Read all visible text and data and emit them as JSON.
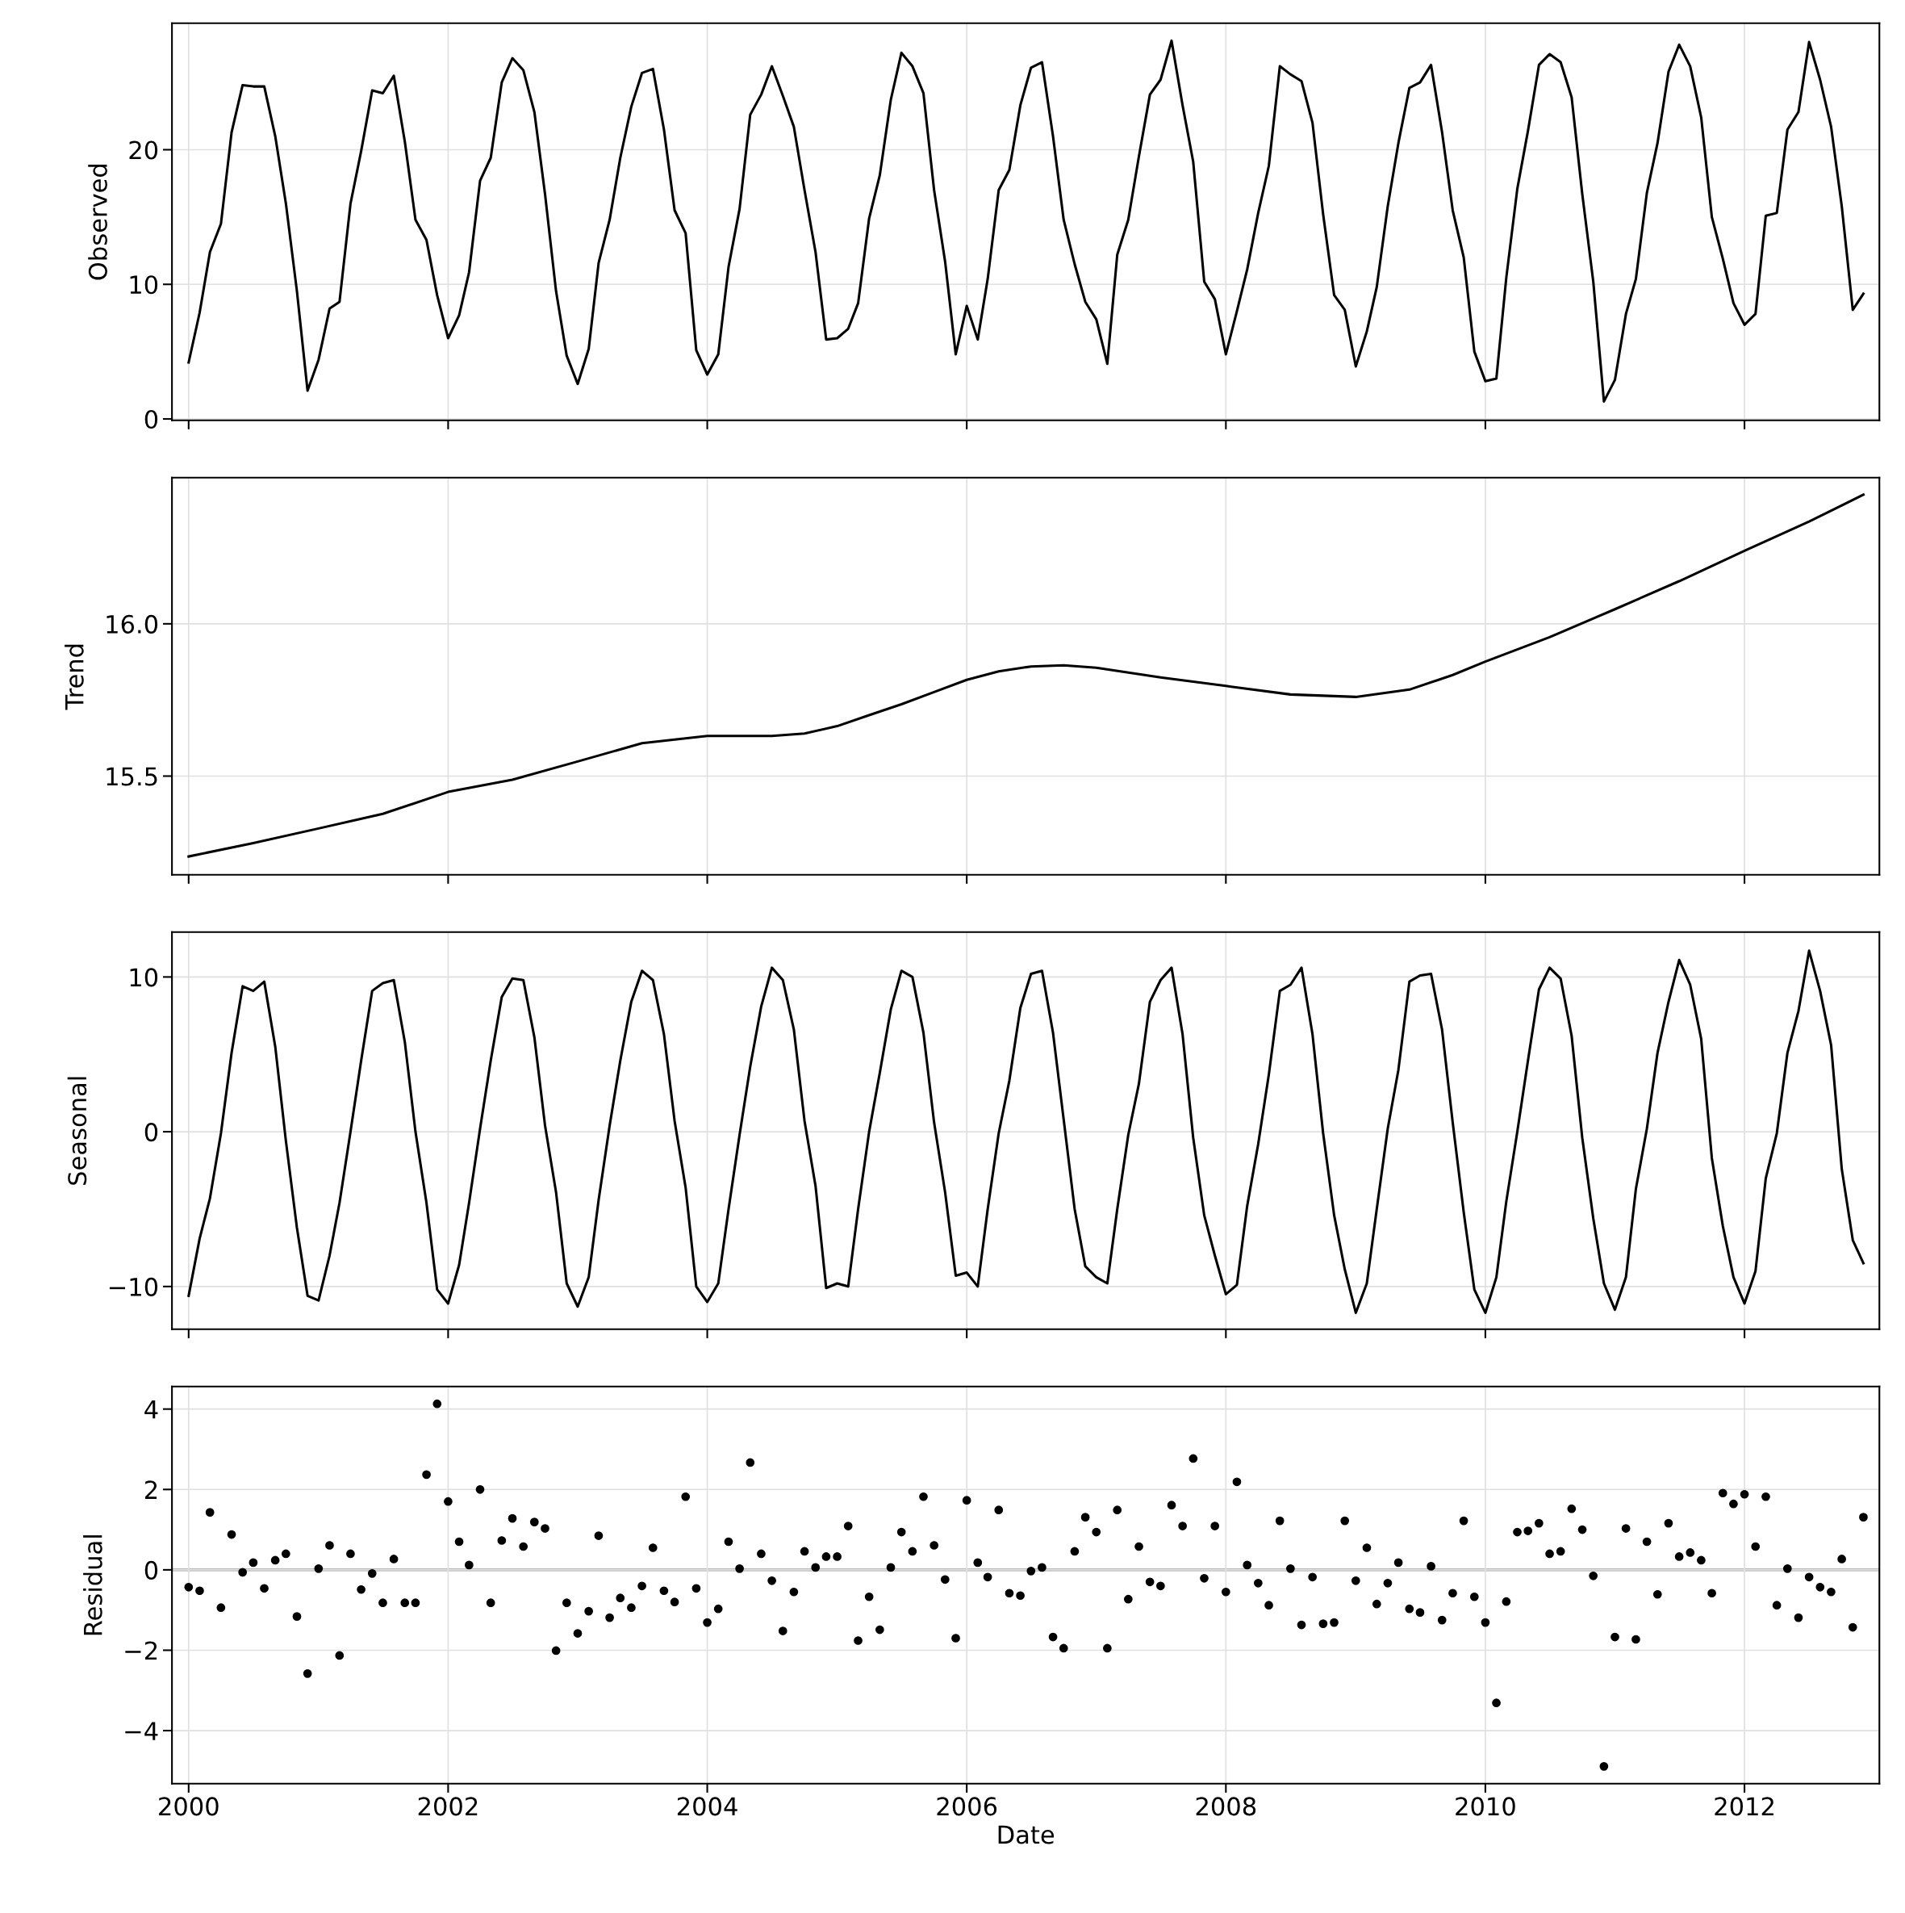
{
  "chart_data": [
    {
      "type": "line",
      "ylabel": "Observed",
      "xlim": [
        "1999-11-15",
        "2013-01-15"
      ],
      "xticks": [
        "2000",
        "2002",
        "2004",
        "2006",
        "2008",
        "2010",
        "2012"
      ],
      "ylim": [
        -0.1,
        29.4
      ],
      "yticks": [
        0,
        10,
        20
      ],
      "grid": true,
      "tick_labels": "y",
      "marker": "none",
      "line_style": "solid",
      "x": [
        "2000-01",
        "2000-02",
        "2000-03",
        "2000-04",
        "2000-05",
        "2000-06",
        "2000-07",
        "2000-08",
        "2000-09",
        "2000-10",
        "2000-11",
        "2000-12",
        "2001-01",
        "2001-02",
        "2001-03",
        "2001-04",
        "2001-05",
        "2001-06",
        "2001-07",
        "2001-08",
        "2001-09",
        "2001-10",
        "2001-11",
        "2001-12",
        "2002-01",
        "2002-02",
        "2002-03",
        "2002-04",
        "2002-05",
        "2002-06",
        "2002-07",
        "2002-08",
        "2002-09",
        "2002-10",
        "2002-11",
        "2002-12",
        "2003-01",
        "2003-02",
        "2003-03",
        "2003-04",
        "2003-05",
        "2003-06",
        "2003-07",
        "2003-08",
        "2003-09",
        "2003-10",
        "2003-11",
        "2003-12",
        "2004-01",
        "2004-02",
        "2004-03",
        "2004-04",
        "2004-05",
        "2004-06",
        "2004-07",
        "2004-08",
        "2004-09",
        "2004-10",
        "2004-11",
        "2004-12",
        "2005-01",
        "2005-02",
        "2005-03",
        "2005-04",
        "2005-05",
        "2005-06",
        "2005-07",
        "2005-08",
        "2005-09",
        "2005-10",
        "2005-11",
        "2005-12",
        "2006-01",
        "2006-02",
        "2006-03",
        "2006-04",
        "2006-05",
        "2006-06",
        "2006-07",
        "2006-08",
        "2006-09",
        "2006-10",
        "2006-11",
        "2006-12",
        "2007-01",
        "2007-02",
        "2007-03",
        "2007-04",
        "2007-05",
        "2007-06",
        "2007-07",
        "2007-08",
        "2007-09",
        "2007-10",
        "2007-11",
        "2007-12",
        "2008-01",
        "2008-02",
        "2008-03",
        "2008-04",
        "2008-05",
        "2008-06",
        "2008-07",
        "2008-08",
        "2008-09",
        "2008-10",
        "2008-11",
        "2008-12",
        "2009-01",
        "2009-02",
        "2009-03",
        "2009-04",
        "2009-05",
        "2009-06",
        "2009-07",
        "2009-08",
        "2009-09",
        "2009-10",
        "2009-11",
        "2009-12",
        "2010-01",
        "2010-02",
        "2010-03",
        "2010-04",
        "2010-05",
        "2010-06",
        "2010-07",
        "2010-08",
        "2010-09",
        "2010-10",
        "2010-11",
        "2010-12",
        "2011-01",
        "2011-02",
        "2011-03",
        "2011-04",
        "2011-05",
        "2011-06",
        "2011-07",
        "2011-08",
        "2011-09",
        "2011-10",
        "2011-11",
        "2011-12",
        "2012-01",
        "2012-02",
        "2012-03",
        "2012-04",
        "2012-05",
        "2012-06",
        "2012-07",
        "2012-08",
        "2012-09",
        "2012-10",
        "2012-11",
        "2012-12"
      ],
      "series": [
        {
          "color": "#000000",
          "values": [
            4.2,
            7.9,
            12.4,
            14.5,
            21.3,
            24.8,
            24.7,
            24.7,
            21,
            16,
            9.5,
            2.1,
            4.4,
            8.2,
            8.7,
            16,
            19.9,
            24.4,
            24.2,
            25.5,
            20.6,
            14.8,
            13.3,
            9.2,
            6.0,
            7.7,
            10.9,
            17.7,
            19.4,
            25,
            26.8,
            25.9,
            22.8,
            16.7,
            9.5,
            4.7,
            2.6,
            5.2,
            11.6,
            14.8,
            19.4,
            23.2,
            25.7,
            26,
            21.5,
            15.5,
            13.8,
            5.1,
            3.3,
            4.8,
            11.3,
            15.6,
            22.6,
            24.1,
            26.2,
            24,
            21.7,
            17,
            12.4,
            5.9,
            6.0,
            6.7,
            8.6,
            14.9,
            18.1,
            23.7,
            27.2,
            26.2,
            24.2,
            17,
            11.7,
            4.8,
            8.4,
            5.9,
            10.4,
            17,
            18.5,
            23.3,
            26.1,
            26.5,
            21,
            14.8,
            11.5,
            8.7,
            7.4,
            4.1,
            12.2,
            14.8,
            19.5,
            24.1,
            25.2,
            28.1,
            23.3,
            19.1,
            10.2,
            8.9,
            4.8,
            8.0,
            11.1,
            15.3,
            18.8,
            26.2,
            25.6,
            25.1,
            22,
            15.2,
            9.2,
            8.1,
            3.9,
            6.5,
            9.8,
            15.8,
            20.5,
            24.6,
            25,
            26.3,
            21.3,
            15.5,
            12,
            5.0,
            2.8,
            3.0,
            10.5,
            17.1,
            21.4,
            26.3,
            27.1,
            26.5,
            23.9,
            16.7,
            10.2,
            1.3,
            2.9,
            7.8,
            10.4,
            16.8,
            20.5,
            25.8,
            27.8,
            26.2,
            22.4,
            15.0,
            11.9,
            8.6,
            7.0,
            7.8,
            15.1,
            15.3,
            21.5,
            22.8,
            28.0,
            25.2,
            21.7,
            15.8,
            8.1,
            9.3
          ]
        }
      ]
    },
    {
      "type": "line",
      "ylabel": "Trend",
      "xlim": [
        "1999-11-15",
        "2013-01-15"
      ],
      "xticks": [
        "2000",
        "2002",
        "2004",
        "2006",
        "2008",
        "2010",
        "2012"
      ],
      "ylim": [
        15.176,
        16.48
      ],
      "yticks": [
        15.5,
        {
          "value": 16,
          "label": "16.0"
        }
      ],
      "grid": true,
      "tick_labels": "y",
      "marker": "none",
      "line_style": "solid",
      "x": [
        "2000-01",
        "2000-07",
        "2001-01",
        "2001-07",
        "2002-01",
        "2002-07",
        "2003-01",
        "2003-07",
        "2004-01",
        "2004-07",
        "2004-10",
        "2005-01",
        "2005-04",
        "2005-07",
        "2005-10",
        "2006-01",
        "2006-04",
        "2006-07",
        "2006-10",
        "2007-01",
        "2007-07",
        "2008-01",
        "2008-07",
        "2009-01",
        "2009-06",
        "2009-10",
        "2010-01",
        "2010-07",
        "2011-01",
        "2011-07",
        "2012-01",
        "2012-07",
        "2012-12"
      ],
      "series": [
        {
          "color": "#000000",
          "values": [
            15.236,
            15.28,
            15.328,
            15.376,
            15.448,
            15.488,
            15.548,
            15.608,
            15.632,
            15.632,
            15.64,
            15.664,
            15.7,
            15.736,
            15.776,
            15.816,
            15.844,
            15.86,
            15.864,
            15.856,
            15.824,
            15.796,
            15.768,
            15.76,
            15.784,
            15.832,
            15.876,
            15.956,
            16.048,
            16.14,
            16.24,
            16.336,
            16.424
          ]
        }
      ]
    },
    {
      "type": "line",
      "ylabel": "Seasonal",
      "xlim": [
        "1999-11-15",
        "2013-01-15"
      ],
      "xticks": [
        "2000",
        "2002",
        "2004",
        "2006",
        "2008",
        "2010",
        "2012"
      ],
      "ylim": [
        -12.76,
        12.9
      ],
      "yticks": [
        {
          "value": -10,
          "label": "−10"
        },
        0,
        10
      ],
      "grid": true,
      "tick_labels": "y",
      "marker": "none",
      "line_style": "solid",
      "x": [
        "2000-01",
        "2000-02",
        "2000-03",
        "2000-04",
        "2000-05",
        "2000-06",
        "2000-07",
        "2000-08",
        "2000-09",
        "2000-10",
        "2000-11",
        "2000-12",
        "2001-01",
        "2001-02",
        "2001-03",
        "2001-04",
        "2001-05",
        "2001-06",
        "2001-07",
        "2001-08",
        "2001-09",
        "2001-10",
        "2001-11",
        "2001-12",
        "2002-01",
        "2002-02",
        "2002-03",
        "2002-04",
        "2002-05",
        "2002-06",
        "2002-07",
        "2002-08",
        "2002-09",
        "2002-10",
        "2002-11",
        "2002-12",
        "2003-01",
        "2003-02",
        "2003-03",
        "2003-04",
        "2003-05",
        "2003-06",
        "2003-07",
        "2003-08",
        "2003-09",
        "2003-10",
        "2003-11",
        "2003-12",
        "2004-01",
        "2004-02",
        "2004-03",
        "2004-04",
        "2004-05",
        "2004-06",
        "2004-07",
        "2004-08",
        "2004-09",
        "2004-10",
        "2004-11",
        "2004-12",
        "2005-01",
        "2005-02",
        "2005-03",
        "2005-04",
        "2005-05",
        "2005-06",
        "2005-07",
        "2005-08",
        "2005-09",
        "2005-10",
        "2005-11",
        "2005-12",
        "2006-01",
        "2006-02",
        "2006-03",
        "2006-04",
        "2006-05",
        "2006-06",
        "2006-07",
        "2006-08",
        "2006-09",
        "2006-10",
        "2006-11",
        "2006-12",
        "2007-01",
        "2007-02",
        "2007-03",
        "2007-04",
        "2007-05",
        "2007-06",
        "2007-07",
        "2007-08",
        "2007-09",
        "2007-10",
        "2007-11",
        "2007-12",
        "2008-01",
        "2008-02",
        "2008-03",
        "2008-04",
        "2008-05",
        "2008-06",
        "2008-07",
        "2008-08",
        "2008-09",
        "2008-10",
        "2008-11",
        "2008-12",
        "2009-01",
        "2009-02",
        "2009-03",
        "2009-04",
        "2009-05",
        "2009-06",
        "2009-07",
        "2009-08",
        "2009-09",
        "2009-10",
        "2009-11",
        "2009-12",
        "2010-01",
        "2010-02",
        "2010-03",
        "2010-04",
        "2010-05",
        "2010-06",
        "2010-07",
        "2010-08",
        "2010-09",
        "2010-10",
        "2010-11",
        "2010-12",
        "2011-01",
        "2011-02",
        "2011-03",
        "2011-04",
        "2011-05",
        "2011-06",
        "2011-07",
        "2011-08",
        "2011-09",
        "2011-10",
        "2011-11",
        "2011-12",
        "2012-01",
        "2012-02",
        "2012-03",
        "2012-04",
        "2012-05",
        "2012-06",
        "2012-07",
        "2012-08",
        "2012-09",
        "2012-10",
        "2012-11",
        "2012-12"
      ],
      "series": [
        {
          "color": "#000000",
          "values": [
            -10.6,
            -6.9,
            -4.3,
            -0.1,
            5.1,
            9.4,
            9.1,
            9.7,
            5.5,
            -0.6,
            -6.2,
            -10.6,
            -10.9,
            -8.0,
            -4.6,
            0,
            4.6,
            9.1,
            9.6,
            9.8,
            5.8,
            0,
            -4.6,
            -10.2,
            -11.1,
            -8.6,
            -4.6,
            0.2,
            4.6,
            8.7,
            9.9,
            9.8,
            6.1,
            0.4,
            -3.9,
            -9.8,
            -11.3,
            -9.4,
            -4.4,
            0.4,
            4.6,
            8.4,
            10.4,
            9.8,
            6.3,
            0.7,
            -3.6,
            -10.0,
            -11.0,
            -9.8,
            -5.0,
            -0.2,
            4.2,
            8.1,
            10.6,
            9.8,
            6.6,
            0.7,
            -3.5,
            -10.1,
            -9.8,
            -10.0,
            -5.0,
            0,
            3.8,
            7.9,
            10.4,
            10.0,
            6.4,
            0.6,
            -3.9,
            -9.3,
            -9.1,
            -10.0,
            -5.0,
            -0.1,
            3.3,
            8.0,
            10.2,
            10.4,
            6.4,
            0.8,
            -5.0,
            -8.7,
            -9.4,
            -9.8,
            -5.0,
            -0.2,
            3.1,
            8.4,
            9.8,
            10.6,
            6.3,
            -0.4,
            -5.4,
            -8.0,
            -10.5,
            -9.9,
            -4.8,
            -0.8,
            3.7,
            9.1,
            9.5,
            10.6,
            6.3,
            -0.1,
            -5.4,
            -8.9,
            -11.7,
            -9.8,
            -5.0,
            0.2,
            4.0,
            9.7,
            10.1,
            10.2,
            6.6,
            0.6,
            -5.2,
            -10.2,
            -11.7,
            -9.4,
            -4.5,
            0,
            4.6,
            9.2,
            10.6,
            9.9,
            6.2,
            -0.4,
            -5.6,
            -9.8,
            -11.5,
            -9.4,
            -3.7,
            0.2,
            5.1,
            8.4,
            11.1,
            9.5,
            6.0,
            -1.7,
            -6.1,
            -9.4,
            -11.1,
            -9.0,
            -3.0,
            -0.1,
            5.1,
            7.8,
            11.7,
            9.1,
            5.6,
            -2.4,
            -7.0,
            -8.5
          ]
        }
      ]
    },
    {
      "type": "scatter",
      "ylabel": "Residual",
      "xlabel": "Date",
      "xlim": [
        "1999-11-15",
        "2013-01-15"
      ],
      "xticks": [
        "2000",
        "2002",
        "2004",
        "2006",
        "2008",
        "2010",
        "2012"
      ],
      "ylim": [
        -5.32,
        4.56
      ],
      "yticks": [
        {
          "value": -4,
          "label": "−4"
        },
        {
          "value": -2,
          "label": "−2"
        },
        0,
        2,
        4
      ],
      "grid": true,
      "marker": "circle",
      "ref_lines": [
        {
          "axis": "y",
          "value": 0,
          "color": "#a0a0a0"
        }
      ],
      "x": [
        "2000-01",
        "2000-02",
        "2000-03",
        "2000-04",
        "2000-05",
        "2000-06",
        "2000-07",
        "2000-08",
        "2000-09",
        "2000-10",
        "2000-11",
        "2000-12",
        "2001-01",
        "2001-02",
        "2001-03",
        "2001-04",
        "2001-05",
        "2001-06",
        "2001-07",
        "2001-08",
        "2001-09",
        "2001-10",
        "2001-11",
        "2001-12",
        "2002-01",
        "2002-02",
        "2002-03",
        "2002-04",
        "2002-05",
        "2002-06",
        "2002-07",
        "2002-08",
        "2002-09",
        "2002-10",
        "2002-11",
        "2002-12",
        "2003-01",
        "2003-02",
        "2003-03",
        "2003-04",
        "2003-05",
        "2003-06",
        "2003-07",
        "2003-08",
        "2003-09",
        "2003-10",
        "2003-11",
        "2003-12",
        "2004-01",
        "2004-02",
        "2004-03",
        "2004-04",
        "2004-05",
        "2004-06",
        "2004-07",
        "2004-08",
        "2004-09",
        "2004-10",
        "2004-11",
        "2004-12",
        "2005-01",
        "2005-02",
        "2005-03",
        "2005-04",
        "2005-05",
        "2005-06",
        "2005-07",
        "2005-08",
        "2005-09",
        "2005-10",
        "2005-11",
        "2005-12",
        "2006-01",
        "2006-02",
        "2006-03",
        "2006-04",
        "2006-05",
        "2006-06",
        "2006-07",
        "2006-08",
        "2006-09",
        "2006-10",
        "2006-11",
        "2006-12",
        "2007-01",
        "2007-02",
        "2007-03",
        "2007-04",
        "2007-05",
        "2007-06",
        "2007-07",
        "2007-08",
        "2007-09",
        "2007-10",
        "2007-11",
        "2007-12",
        "2008-01",
        "2008-02",
        "2008-03",
        "2008-04",
        "2008-05",
        "2008-06",
        "2008-07",
        "2008-08",
        "2008-09",
        "2008-10",
        "2008-11",
        "2008-12",
        "2009-01",
        "2009-02",
        "2009-03",
        "2009-04",
        "2009-05",
        "2009-06",
        "2009-07",
        "2009-08",
        "2009-09",
        "2009-10",
        "2009-11",
        "2009-12",
        "2010-01",
        "2010-02",
        "2010-03",
        "2010-04",
        "2010-05",
        "2010-06",
        "2010-07",
        "2010-08",
        "2010-09",
        "2010-10",
        "2010-11",
        "2010-12",
        "2011-01",
        "2011-02",
        "2011-03",
        "2011-04",
        "2011-05",
        "2011-06",
        "2011-07",
        "2011-08",
        "2011-09",
        "2011-10",
        "2011-11",
        "2011-12",
        "2012-01",
        "2012-02",
        "2012-03",
        "2012-04",
        "2012-05",
        "2012-06",
        "2012-07",
        "2012-08",
        "2012-09",
        "2012-10",
        "2012-11",
        "2012-12"
      ],
      "series": [
        {
          "color": "#000000",
          "values": [
            -0.43,
            -0.52,
            1.43,
            -0.94,
            0.88,
            -0.06,
            0.18,
            -0.46,
            0.24,
            0.4,
            -1.16,
            -2.58,
            0.03,
            0.61,
            -2.13,
            0.4,
            -0.49,
            -0.09,
            -0.82,
            0.27,
            -0.82,
            -0.82,
            2.37,
            4.13,
            1.7,
            0.7,
            0.12,
            2.0,
            -0.82,
            0.73,
            1.28,
            0.58,
            1.19,
            1.03,
            -2.01,
            -0.82,
            -1.58,
            -1.03,
            0.85,
            -1.19,
            -0.7,
            -0.94,
            -0.4,
            0.55,
            -0.52,
            -0.8,
            1.82,
            -0.46,
            -1.31,
            -0.97,
            0.7,
            0.03,
            2.67,
            0.4,
            -0.27,
            -1.52,
            -0.55,
            0.46,
            0.06,
            0.33,
            0.33,
            1.09,
            -1.76,
            -0.67,
            -1.49,
            0.06,
            0.94,
            0.46,
            1.82,
            0.61,
            -0.24,
            -1.7,
            1.73,
            0.18,
            -0.18,
            1.49,
            -0.58,
            -0.64,
            -0.03,
            0.06,
            -1.67,
            -1.95,
            0.46,
            1.31,
            0.94,
            -1.95,
            1.49,
            -0.73,
            0.58,
            -0.3,
            -0.4,
            1.61,
            1.09,
            2.77,
            -0.21,
            1.09,
            -0.55,
            2.19,
            0.12,
            -0.33,
            -0.88,
            1.22,
            0.03,
            -1.37,
            -0.18,
            -1.34,
            -1.31,
            1.22,
            -0.27,
            0.55,
            -0.85,
            -0.33,
            0.18,
            -0.97,
            -1.06,
            0.09,
            -1.25,
            -0.58,
            1.22,
            -0.67,
            -1.31,
            -3.31,
            -0.79,
            0.94,
            0.97,
            1.16,
            0.4,
            0.46,
            1.52,
            1.0,
            -0.15,
            -4.89,
            -1.67,
            1.03,
            -1.73,
            0.7,
            -0.61,
            1.16,
            0.33,
            0.43,
            0.24,
            -0.58,
            1.91,
            1.64,
            1.88,
            0.58,
            1.82,
            -0.88,
            0.03,
            -1.19,
            -0.18,
            -0.43,
            -0.55,
            0.27,
            -1.43,
            1.31
          ]
        }
      ]
    }
  ]
}
